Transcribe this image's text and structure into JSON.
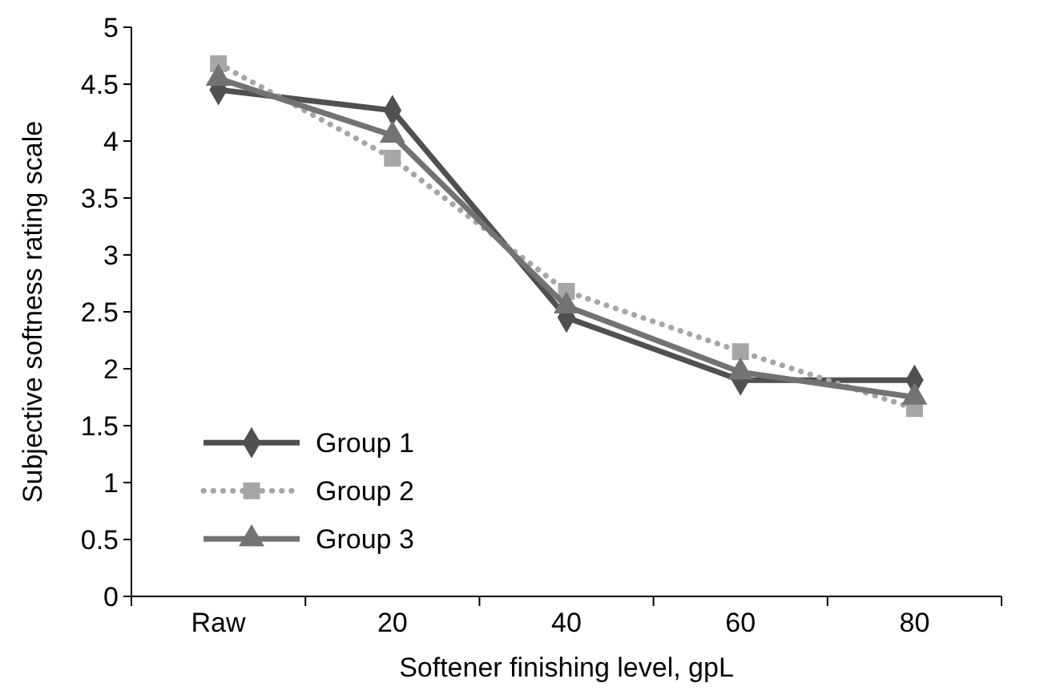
{
  "chart_data": {
    "type": "line",
    "xlabel": "Softener finishing level, gpL",
    "ylabel": "Subjective softness rating scale",
    "categories": [
      "Raw",
      "20",
      "40",
      "60",
      "80"
    ],
    "ylim": [
      0,
      5
    ],
    "yticks": [
      0,
      0.5,
      1,
      1.5,
      2,
      2.5,
      3,
      3.5,
      4,
      4.5,
      5
    ],
    "grid": false,
    "legend": "bottom left",
    "series": [
      {
        "name": "Group 1",
        "color": "#505050",
        "marker": "diamond",
        "line_style": "solid",
        "values": [
          4.45,
          4.27,
          2.45,
          1.9,
          1.9
        ]
      },
      {
        "name": "Group 2",
        "color": "#a6a6a6",
        "marker": "square",
        "line_style": "dotted",
        "values": [
          4.68,
          3.85,
          2.68,
          2.15,
          1.65
        ]
      },
      {
        "name": "Group 3",
        "color": "#737373",
        "marker": "triangle",
        "line_style": "solid",
        "values": [
          4.55,
          4.05,
          2.55,
          1.97,
          1.75
        ]
      }
    ]
  }
}
